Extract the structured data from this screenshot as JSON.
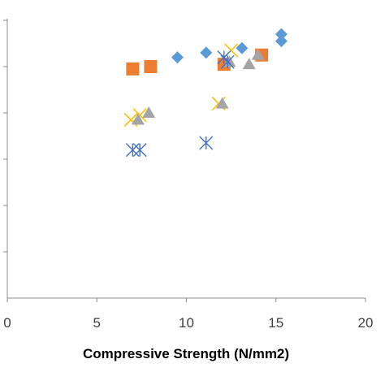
{
  "chart_data": {
    "type": "scatter",
    "title": "",
    "xlabel": "Compressive Strength (N/mm2)",
    "ylabel": "",
    "xlim": [
      0,
      20
    ],
    "ylim": [
      0,
      6
    ],
    "x_ticks": [
      "0",
      "5",
      "10",
      "15",
      "20"
    ],
    "y_ticks": [
      1,
      2,
      3,
      4,
      5,
      6
    ],
    "grid": false,
    "legend": "none",
    "series": [
      {
        "marker": "diamond",
        "color": "#5B9BD5",
        "points": [
          [
            9.5,
            5.2
          ],
          [
            11.1,
            5.3
          ],
          [
            13.1,
            5.4
          ],
          [
            15.3,
            5.7
          ],
          [
            15.3,
            5.55
          ]
        ]
      },
      {
        "marker": "square",
        "color": "#ED7D31",
        "points": [
          [
            7.0,
            4.95
          ],
          [
            8.0,
            5.0
          ],
          [
            12.1,
            5.05
          ],
          [
            14.2,
            5.25
          ]
        ]
      },
      {
        "marker": "x",
        "color": "#FFC000",
        "points": [
          [
            6.9,
            3.85
          ],
          [
            7.4,
            3.95
          ],
          [
            11.8,
            4.2
          ],
          [
            12.5,
            5.35
          ]
        ]
      },
      {
        "marker": "triangle",
        "color": "#A5A5A5",
        "points": [
          [
            7.3,
            3.85
          ],
          [
            7.9,
            4.0
          ],
          [
            12.0,
            4.2
          ],
          [
            12.4,
            5.1
          ],
          [
            13.5,
            5.05
          ],
          [
            14.0,
            5.25
          ]
        ]
      },
      {
        "marker": "asterisk",
        "color": "#4472C4",
        "points": [
          [
            7.0,
            3.2
          ],
          [
            7.4,
            3.2
          ],
          [
            11.1,
            3.35
          ],
          [
            12.1,
            5.2
          ],
          [
            12.3,
            5.1
          ]
        ]
      }
    ]
  }
}
